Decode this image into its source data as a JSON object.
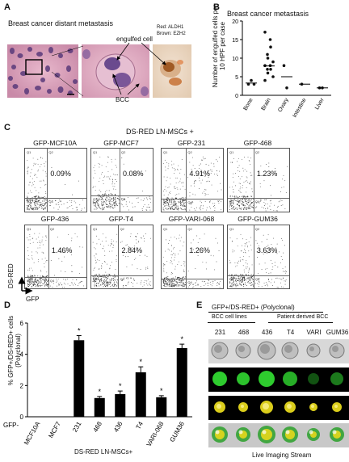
{
  "panelA": {
    "label": "A",
    "title": "Breast cancer distant metastasis",
    "legend_red": "Red: ALDH1",
    "legend_brown": "Brown: EZH2",
    "engulfed": "engulfed cell",
    "bcc": "BCC"
  },
  "panelB": {
    "label": "B",
    "title": "Breast cancer metastasis",
    "ylabel": "Number of engulfed cells per 10 HPF per case",
    "chart_data": {
      "type": "scatter",
      "title": "Breast cancer metastasis",
      "ylabel": "Number of engulfed cells per 10 HPF per case",
      "categories": [
        "Bone",
        "Brain",
        "Ovary",
        "Intestine",
        "Liver"
      ],
      "ylim": [
        0,
        20
      ],
      "yticks": [
        0,
        5,
        10,
        15,
        20
      ],
      "points": [
        {
          "category": "Bone",
          "values": [
            3,
            4,
            3
          ]
        },
        {
          "category": "Brain",
          "values": [
            17,
            15,
            13,
            11,
            10,
            9,
            8,
            8,
            7,
            7,
            6,
            5,
            4
          ]
        },
        {
          "category": "Ovary",
          "values": [
            8,
            2
          ]
        },
        {
          "category": "Intestine",
          "values": [
            3
          ]
        },
        {
          "category": "Liver",
          "values": [
            2,
            2
          ]
        }
      ],
      "means": [
        3.3,
        7.9,
        5,
        3,
        2
      ]
    },
    "ticks": [
      "0",
      "5",
      "10",
      "15",
      "20"
    ]
  },
  "panelC": {
    "label": "C",
    "header": "DS-RED LN-MSCs +",
    "xaxis": "GFP",
    "yaxis": "DS-RED",
    "plots": [
      {
        "name": "GFP-MCF10A",
        "pct": "0.09%"
      },
      {
        "name": "GFP-MCF7",
        "pct": "0.08%"
      },
      {
        "name": "GFP-231",
        "pct": "4.91%"
      },
      {
        "name": "GFP-468",
        "pct": "1.23%"
      },
      {
        "name": "GFP-436",
        "pct": "1.46%"
      },
      {
        "name": "GFP-T4",
        "pct": "2.84%"
      },
      {
        "name": "GFP-VARI-068",
        "pct": "1.26%"
      },
      {
        "name": "GFP-GUM36",
        "pct": "3.63%"
      }
    ],
    "quad": [
      "Q1",
      "Q2",
      "Q3",
      "Q4"
    ]
  },
  "panelD": {
    "label": "D",
    "ylabel": "% GFP+/DS-RED+ cells (Polyclonal)",
    "row_prefix": "GFP-",
    "footer": "DS-RED LN-MSCs+",
    "ticks": [
      "0",
      "2",
      "4",
      "6"
    ],
    "chart_data": {
      "type": "bar",
      "ylabel": "% GFP+/DS-RED+ cells (Polyclonal)",
      "categories": [
        "MCF10A",
        "MCF7",
        "231",
        "468",
        "436",
        "T4",
        "VARI-068",
        "GUM36"
      ],
      "values": [
        0,
        0,
        4.9,
        1.2,
        1.45,
        2.85,
        1.25,
        4.4
      ],
      "errors": [
        0,
        0,
        0.3,
        0.1,
        0.2,
        0.35,
        0.1,
        0.25
      ],
      "significant": [
        false,
        false,
        true,
        true,
        true,
        true,
        true,
        true
      ],
      "star": "*",
      "ylim": [
        0,
        6
      ]
    }
  },
  "panelE": {
    "label": "E",
    "title": "GFP+/DS-RED+ (Polyclonal)",
    "group1": "BCC cell lines",
    "group2": "Patient derived BCC",
    "columns": [
      "231",
      "468",
      "436",
      "T4",
      "VARI",
      "GUM36"
    ],
    "footer": "Live Imaging Stream",
    "colors": {
      "bright": "#e8e8e8",
      "gfp": "#2ecc2e",
      "merge": "#e6d81c",
      "background": "#000000"
    }
  }
}
